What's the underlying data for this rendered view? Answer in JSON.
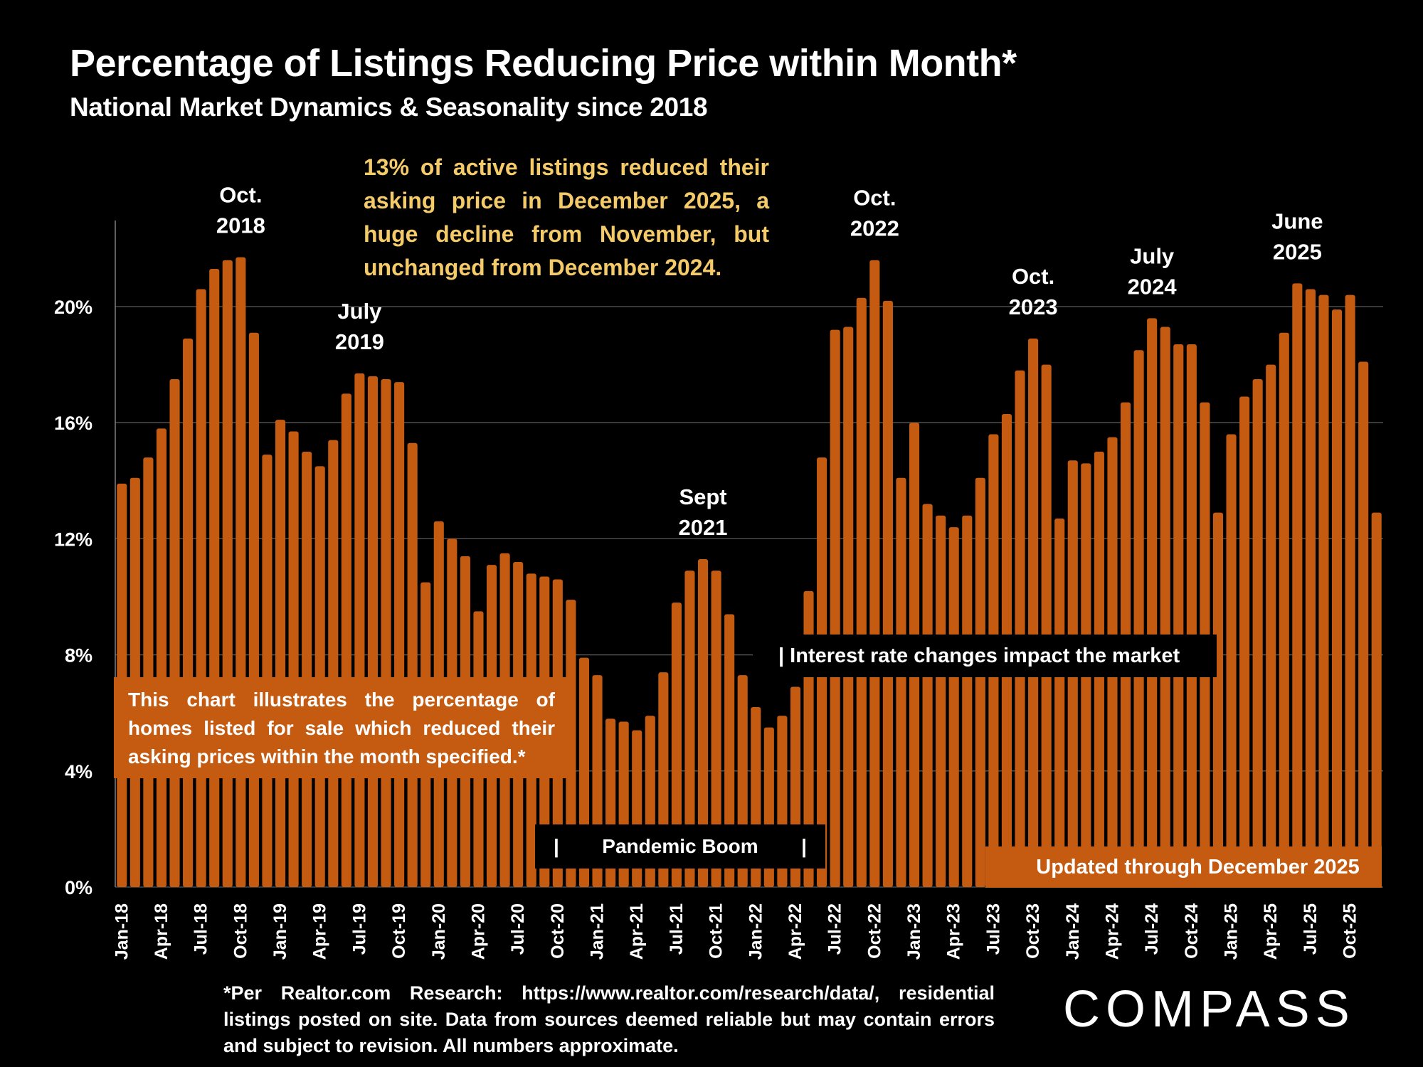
{
  "header": {
    "title": "Percentage of Listings Reducing Price within Month*",
    "subtitle": "National Market Dynamics & Seasonality since 2018"
  },
  "callout": "13% of active listings reduced their asking price in December 2025, a huge decline from November, but unchanged from December 2024.",
  "explanation_box": "This chart illustrates the percentage of homes listed for sale which reduced their asking prices within the month specified.*",
  "period_labels": {
    "pandemic_left_bar": "|",
    "pandemic": "Pandemic Boom",
    "pandemic_right_bar": "|",
    "rates": "| Interest rate changes impact the market",
    "updated": "Updated through December 2025"
  },
  "footnote": "*Per Realtor.com Research:   https://www.realtor.com/research/data/, residential listings posted on site. Data from sources deemed reliable but may contain errors and subject to revision. All numbers approximate.",
  "logo": "COMPASS",
  "colors": {
    "bar": "#C55A11",
    "callout_text": "#F5CB6A",
    "background": "#000000",
    "gridline": "#595959"
  },
  "chart_data": {
    "type": "bar",
    "title": "Percentage of Listings Reducing Price within Month*",
    "subtitle": "National Market Dynamics & Seasonality since 2018",
    "xlabel": "",
    "ylabel": "",
    "ylim": [
      0,
      23
    ],
    "yticks": [
      0,
      4,
      8,
      12,
      16,
      20
    ],
    "ytick_labels": [
      "0%",
      "4%",
      "8%",
      "12%",
      "16%",
      "20%"
    ],
    "grid": true,
    "categories": [
      "Jan-18",
      "Feb-18",
      "Mar-18",
      "Apr-18",
      "May-18",
      "Jun-18",
      "Jul-18",
      "Aug-18",
      "Sep-18",
      "Oct-18",
      "Nov-18",
      "Dec-18",
      "Jan-19",
      "Feb-19",
      "Mar-19",
      "Apr-19",
      "May-19",
      "Jun-19",
      "Jul-19",
      "Aug-19",
      "Sep-19",
      "Oct-19",
      "Nov-19",
      "Dec-19",
      "Jan-20",
      "Feb-20",
      "Mar-20",
      "Apr-20",
      "May-20",
      "Jun-20",
      "Jul-20",
      "Aug-20",
      "Sep-20",
      "Oct-20",
      "Nov-20",
      "Dec-20",
      "Jan-21",
      "Feb-21",
      "Mar-21",
      "Apr-21",
      "May-21",
      "Jun-21",
      "Jul-21",
      "Aug-21",
      "Sep-21",
      "Oct-21",
      "Nov-21",
      "Dec-21",
      "Jan-22",
      "Feb-22",
      "Mar-22",
      "Apr-22",
      "May-22",
      "Jun-22",
      "Jul-22",
      "Aug-22",
      "Sep-22",
      "Oct-22",
      "Nov-22",
      "Dec-22",
      "Jan-23",
      "Feb-23",
      "Mar-23",
      "Apr-23",
      "May-23",
      "Jun-23",
      "Jul-23",
      "Aug-23",
      "Sep-23",
      "Oct-23",
      "Nov-23",
      "Dec-23",
      "Jan-24",
      "Feb-24",
      "Mar-24",
      "Apr-24",
      "May-24",
      "Jun-24",
      "Jul-24",
      "Aug-24",
      "Sep-24",
      "Oct-24",
      "Nov-24",
      "Dec-24",
      "Jan-25",
      "Feb-25",
      "Mar-25",
      "Apr-25",
      "May-25",
      "Jun-25",
      "Jul-25",
      "Aug-25",
      "Sep-25",
      "Oct-25",
      "Nov-25",
      "Dec-25"
    ],
    "xtick_labels": [
      "Jan-18",
      "Apr-18",
      "Jul-18",
      "Oct-18",
      "Jan-19",
      "Apr-19",
      "Jul-19",
      "Oct-19",
      "Jan-20",
      "Apr-20",
      "Jul-20",
      "Oct-20",
      "Jan-21",
      "Apr-21",
      "Jul-21",
      "Oct-21",
      "Jan-22",
      "Apr-22",
      "Jul-22",
      "Oct-22",
      "Jan-23",
      "Apr-23",
      "Jul-23",
      "Oct-23",
      "Jan-24",
      "Apr-24",
      "Jul-24",
      "Oct-24",
      "Jan-25",
      "Apr-25",
      "Jul-25",
      "Oct-25"
    ],
    "values": [
      13.9,
      14.1,
      14.8,
      15.8,
      17.5,
      18.9,
      20.6,
      21.3,
      21.6,
      21.7,
      19.1,
      14.9,
      16.1,
      15.7,
      15.0,
      14.5,
      15.4,
      17.0,
      17.7,
      17.6,
      17.5,
      17.4,
      15.3,
      10.5,
      12.6,
      12.0,
      11.4,
      9.5,
      11.1,
      11.5,
      11.2,
      10.8,
      10.7,
      10.6,
      9.9,
      7.9,
      7.3,
      5.8,
      5.7,
      5.4,
      5.9,
      7.4,
      9.8,
      10.9,
      11.3,
      10.9,
      9.4,
      7.3,
      6.2,
      5.5,
      5.9,
      6.9,
      10.2,
      14.8,
      19.2,
      19.3,
      20.3,
      21.6,
      20.2,
      14.1,
      16.0,
      13.2,
      12.8,
      12.4,
      12.8,
      14.1,
      15.6,
      16.3,
      17.8,
      18.9,
      18.0,
      12.7,
      14.7,
      14.6,
      15.0,
      15.5,
      16.7,
      18.5,
      19.6,
      19.3,
      18.7,
      18.7,
      16.7,
      12.9,
      15.6,
      16.9,
      17.5,
      18.0,
      19.1,
      20.8,
      20.6,
      20.4,
      19.9,
      20.4,
      18.1,
      12.9
    ],
    "annotations": [
      {
        "label_line1": "Oct.",
        "label_line2": "2018",
        "category": "Oct-18"
      },
      {
        "label_line1": "July",
        "label_line2": "2019",
        "category": "Jul-19"
      },
      {
        "label_line1": "Sept",
        "label_line2": "2021",
        "category": "Sep-21"
      },
      {
        "label_line1": "Oct.",
        "label_line2": "2022",
        "category": "Oct-22"
      },
      {
        "label_line1": "Oct.",
        "label_line2": "2023",
        "category": "Oct-23"
      },
      {
        "label_line1": "July",
        "label_line2": "2024",
        "category": "Jul-24"
      },
      {
        "label_line1": "June",
        "label_line2": "2025",
        "category": "Jun-25"
      }
    ]
  }
}
